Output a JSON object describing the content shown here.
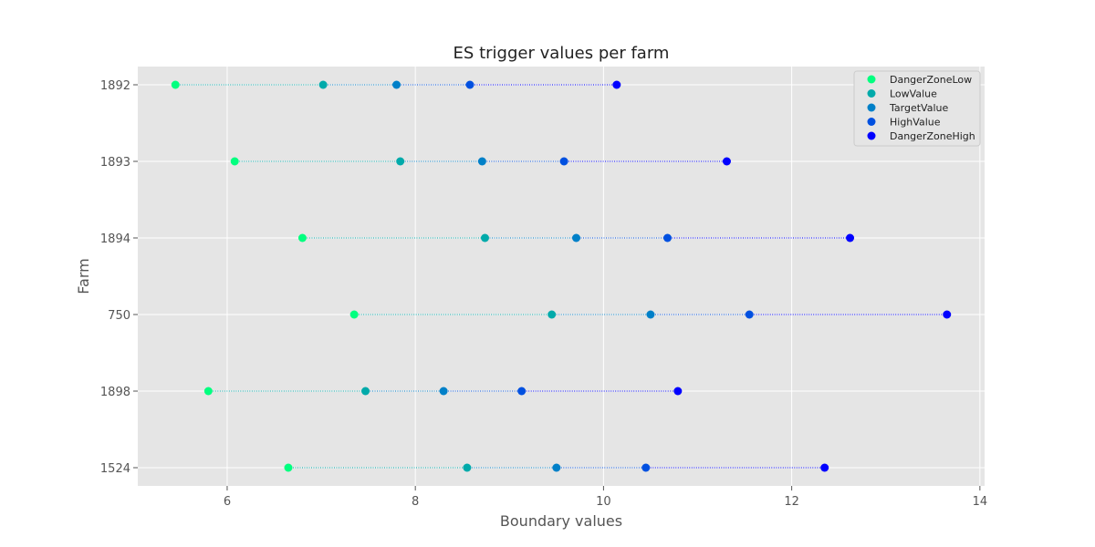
{
  "chart_data": {
    "type": "scatter",
    "title": "ES trigger values per farm",
    "xlabel": "Boundary values",
    "ylabel": "Farm",
    "xlim": [
      5.05,
      14.05
    ],
    "xticks": [
      6,
      8,
      10,
      12,
      14
    ],
    "grid": true,
    "legend_position": "top-right",
    "categories": [
      "1892",
      "1893",
      "1894",
      "750",
      "1898",
      "1524"
    ],
    "series": [
      {
        "name": "DangerZoneLow",
        "color": "#00ff7f",
        "values": [
          5.45,
          6.08,
          6.8,
          7.35,
          5.8,
          6.65
        ]
      },
      {
        "name": "LowValue",
        "color": "#00aaaa",
        "values": [
          7.02,
          7.84,
          8.74,
          9.45,
          7.47,
          8.55
        ]
      },
      {
        "name": "TargetValue",
        "color": "#0080c8",
        "values": [
          7.8,
          8.71,
          9.71,
          10.5,
          8.3,
          9.5
        ]
      },
      {
        "name": "HighValue",
        "color": "#0050e0",
        "values": [
          8.58,
          9.58,
          10.68,
          11.55,
          9.13,
          10.45
        ]
      },
      {
        "name": "DangerZoneHigh",
        "color": "#0000ff",
        "values": [
          10.14,
          11.31,
          12.62,
          13.65,
          10.79,
          12.35
        ]
      }
    ]
  }
}
